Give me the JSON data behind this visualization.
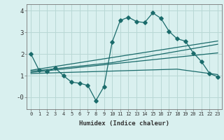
{
  "xlabel": "Humidex (Indice chaleur)",
  "background_color": "#d9f0ef",
  "grid_color": "#b8d8d5",
  "line_color": "#1a6b6b",
  "xlim": [
    -0.5,
    23.5
  ],
  "ylim": [
    -0.55,
    4.3
  ],
  "yticks": [
    0,
    1,
    2,
    3,
    4
  ],
  "ytick_labels": [
    "-0",
    "1",
    "2",
    "3",
    "4"
  ],
  "xtick_labels": [
    "0",
    "1",
    "2",
    "3",
    "4",
    "5",
    "6",
    "7",
    "8",
    "9",
    "10",
    "11",
    "12",
    "13",
    "14",
    "15",
    "16",
    "17",
    "18",
    "19",
    "20",
    "21",
    "22",
    "23"
  ],
  "line1_x": [
    0,
    1,
    2,
    3,
    4,
    5,
    6,
    7,
    8,
    9,
    10,
    11,
    12,
    13,
    14,
    15,
    16,
    17,
    18,
    19,
    20,
    21,
    22,
    23
  ],
  "line1_y": [
    2.0,
    1.25,
    1.2,
    1.35,
    1.0,
    0.7,
    0.65,
    0.55,
    -0.15,
    0.5,
    2.55,
    3.55,
    3.7,
    3.5,
    3.45,
    3.9,
    3.65,
    3.05,
    2.7,
    2.6,
    2.05,
    1.65,
    1.1,
    0.95
  ],
  "line2_x": [
    0,
    23
  ],
  "line2_y": [
    1.25,
    2.6
  ],
  "line3_x": [
    0,
    10,
    23
  ],
  "line3_y": [
    1.2,
    1.6,
    2.45
  ],
  "line4_x": [
    0,
    23
  ],
  "line4_y": [
    1.15,
    2.05
  ],
  "line5_x": [
    0,
    18,
    23
  ],
  "line5_y": [
    1.1,
    1.3,
    1.05
  ]
}
